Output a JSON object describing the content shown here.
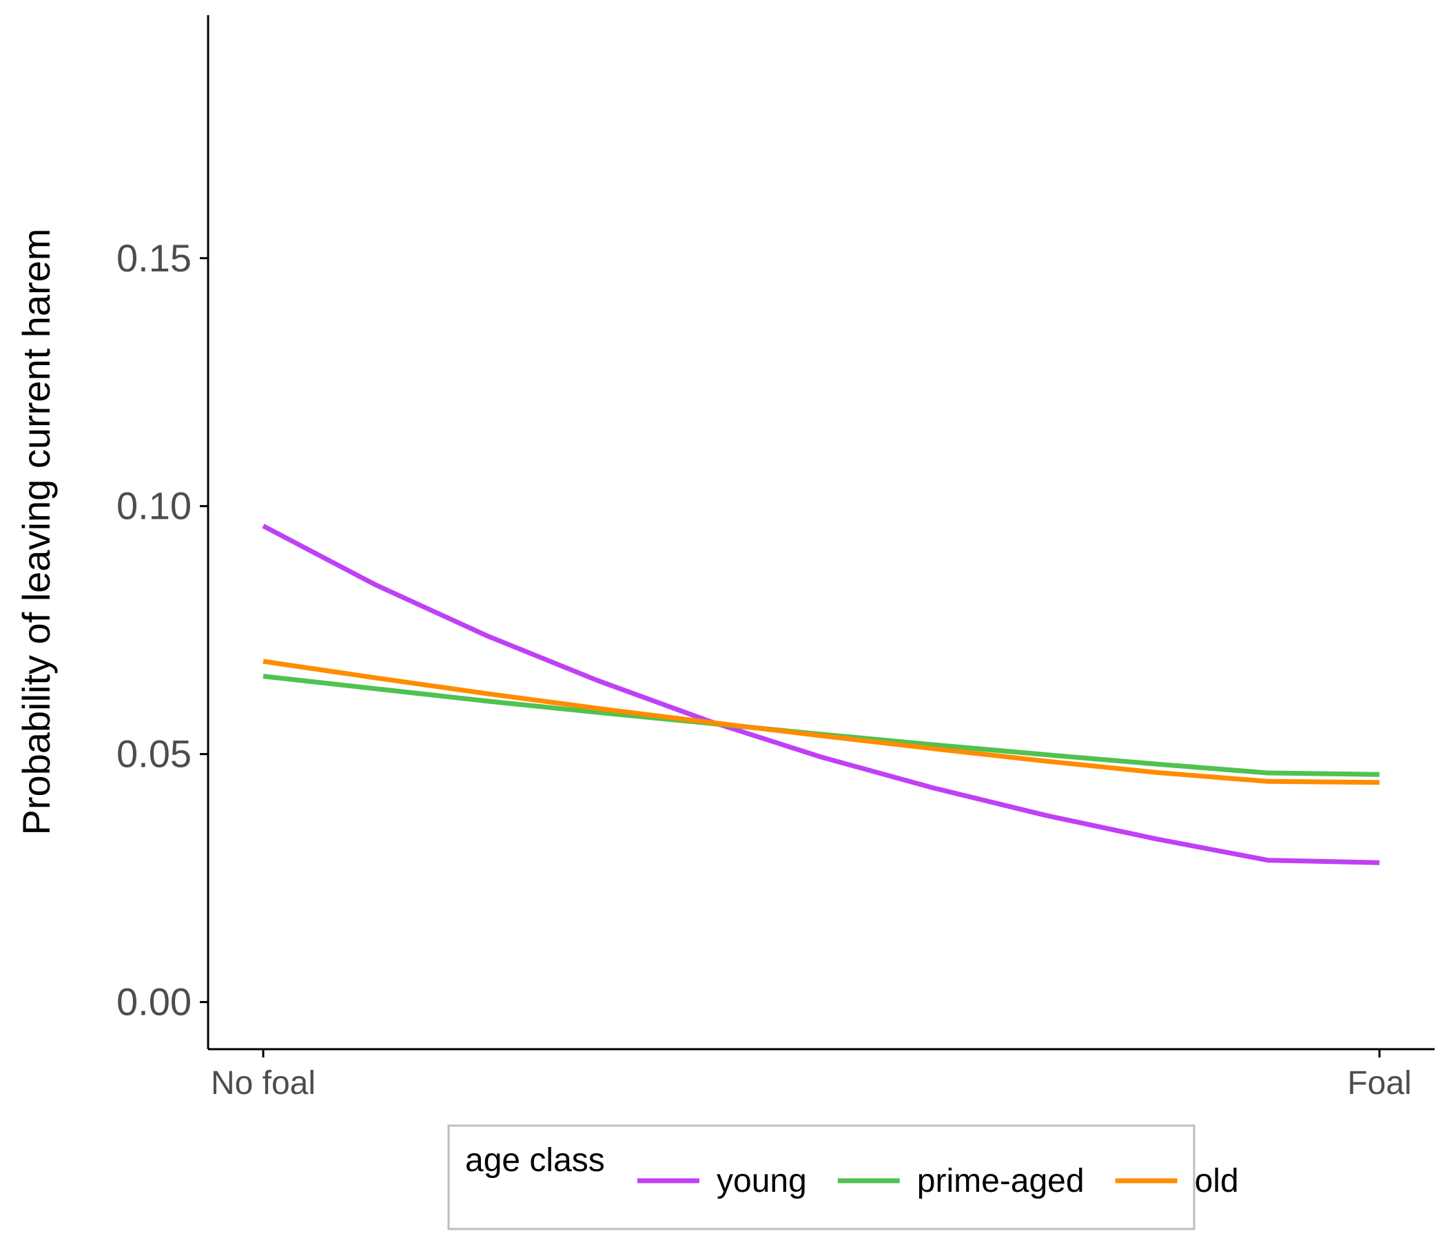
{
  "chart_data": {
    "type": "line",
    "title": "",
    "xlabel": "",
    "ylabel": "Probability of leaving current harem",
    "x_categories": [
      "No foal",
      "Foal"
    ],
    "x_range": [
      0,
      1
    ],
    "ylim": [
      -0.0095,
      0.199
    ],
    "y_ticks": [
      0.0,
      0.05,
      0.1,
      0.15
    ],
    "y_tick_labels": [
      "0.00",
      "0.05",
      "0.10",
      "0.15"
    ],
    "grid": false,
    "legend": {
      "title": "age class",
      "position": "bottom"
    },
    "series": [
      {
        "name": "young",
        "color": "#bf40f5",
        "x": [
          0,
          0.1,
          0.2,
          0.3,
          0.4,
          0.5,
          0.6,
          0.7,
          0.8,
          0.9,
          1
        ],
        "y": [
          0.096,
          0.0842,
          0.0739,
          0.0648,
          0.0566,
          0.0494,
          0.0432,
          0.0377,
          0.0329,
          0.0286,
          0.0281
        ]
      },
      {
        "name": "prime-aged",
        "color": "#4fc24f",
        "x": [
          0,
          0.1,
          0.2,
          0.3,
          0.4,
          0.5,
          0.6,
          0.7,
          0.8,
          0.9,
          1
        ],
        "y": [
          0.0657,
          0.0632,
          0.0607,
          0.0584,
          0.0562,
          0.054,
          0.0519,
          0.0499,
          0.048,
          0.0462,
          0.0459
        ]
      },
      {
        "name": "old",
        "color": "#ff8c00",
        "x": [
          0,
          0.1,
          0.2,
          0.3,
          0.4,
          0.5,
          0.6,
          0.7,
          0.8,
          0.9,
          1
        ],
        "y": [
          0.0687,
          0.0654,
          0.0622,
          0.0592,
          0.0564,
          0.0537,
          0.0511,
          0.0486,
          0.0463,
          0.0445,
          0.0443
        ]
      }
    ]
  }
}
